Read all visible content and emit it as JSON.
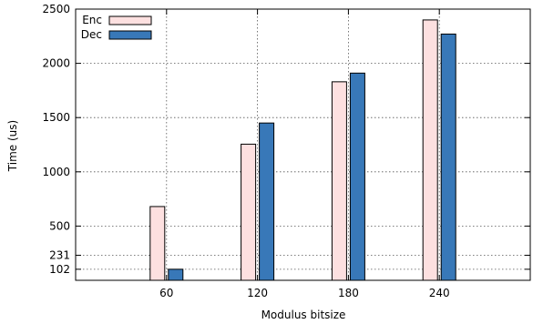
{
  "chart_data": {
    "type": "bar",
    "xlabel": "Modulus bitsize",
    "ylabel": "Time (us)",
    "categories": [
      "60",
      "120",
      "180",
      "240"
    ],
    "ylim": [
      0,
      2500
    ],
    "yticks": [
      102,
      231,
      500,
      1000,
      1500,
      2000,
      2500
    ],
    "grid": true,
    "legend_position": "top-left",
    "series": [
      {
        "name": "Enc",
        "values": [
          680,
          1255,
          1830,
          2400
        ],
        "color": "#fde0e0"
      },
      {
        "name": "Dec",
        "values": [
          102,
          1450,
          1910,
          2270
        ],
        "color": "#3878b8"
      }
    ]
  }
}
